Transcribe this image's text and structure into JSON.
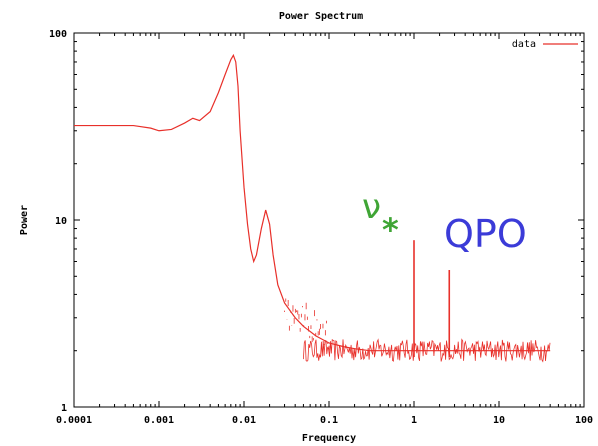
{
  "chart_data": {
    "type": "line",
    "title": "Power Spectrum",
    "xlabel": "Frequency",
    "ylabel": "Power",
    "xscale": "log",
    "yscale": "log",
    "xlim": [
      0.0001,
      100
    ],
    "ylim": [
      1,
      100
    ],
    "x_ticks": [
      "0.0001",
      "0.001",
      "0.01",
      "0.1",
      "1",
      "10",
      "100"
    ],
    "y_ticks": [
      "1",
      "10",
      "100"
    ],
    "grid": false,
    "legend": {
      "placement": "top-right",
      "entries": [
        "data"
      ]
    },
    "series": [
      {
        "name": "data",
        "color": "#e8302a",
        "x": [
          0.0001,
          0.0003,
          0.0005,
          0.0008,
          0.001,
          0.0014,
          0.002,
          0.0025,
          0.003,
          0.004,
          0.005,
          0.006,
          0.007,
          0.0075,
          0.008,
          0.0085,
          0.009,
          0.01,
          0.011,
          0.012,
          0.013,
          0.014,
          0.016,
          0.018,
          0.02,
          0.022,
          0.025,
          0.03,
          0.04,
          0.05,
          0.07,
          0.1,
          0.15,
          0.2,
          0.3,
          0.5,
          1,
          2,
          5,
          10,
          20,
          40
        ],
        "values": [
          32,
          32,
          32,
          31,
          30,
          30.5,
          33,
          35,
          34,
          38,
          48,
          60,
          72,
          76,
          70,
          52,
          30,
          15,
          9.5,
          7,
          6,
          6.5,
          9,
          11.3,
          9.5,
          6.5,
          4.5,
          3.6,
          3.0,
          2.7,
          2.4,
          2.2,
          2.1,
          2.05,
          2.0,
          2.0,
          2.0,
          2.0,
          2.0,
          2.0,
          2.0,
          2.0
        ]
      }
    ],
    "noise_floor": {
      "from": 0.05,
      "to": 40,
      "min": 1.75,
      "max": 2.3
    },
    "spikes": [
      {
        "label": "ν*",
        "x": 1.0,
        "peak": 7.8
      },
      {
        "label": "QPO",
        "x": 2.6,
        "peak": 5.4
      }
    ],
    "annotations": [
      {
        "text": "ν",
        "subscript": "*",
        "color": "#3fa535",
        "near_x": 0.5,
        "near_y": 10
      },
      {
        "text": "QPO",
        "color": "#3b3bd8",
        "near_x": 8,
        "near_y": 8
      }
    ]
  }
}
